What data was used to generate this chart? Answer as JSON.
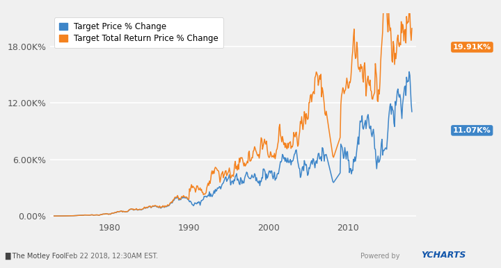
{
  "legend_entries": [
    "Target Price % Change",
    "Target Total Return Price % Change"
  ],
  "line_colors": [
    "#3d85c8",
    "#f4821f"
  ],
  "end_labels": [
    "11.07K%",
    "19.91K%"
  ],
  "end_label_colors": [
    "#3d85c8",
    "#f4821f"
  ],
  "ytick_labels": [
    "0.00%",
    "6.00K%",
    "12.00K%",
    "18.00K%"
  ],
  "ytick_values": [
    0,
    6000,
    12000,
    18000
  ],
  "ylim": [
    -400,
    21500
  ],
  "xlim_start": 1972.5,
  "xlim_end": 2018.5,
  "xtick_years": [
    1980,
    1990,
    2000,
    2010
  ],
  "background_color": "#f0f0f0",
  "plot_bg_color": "#f0f0f0",
  "grid_color": "#ffffff",
  "footer_text": "Feb 22 2018, 12:30AM EST.",
  "seed": 12
}
